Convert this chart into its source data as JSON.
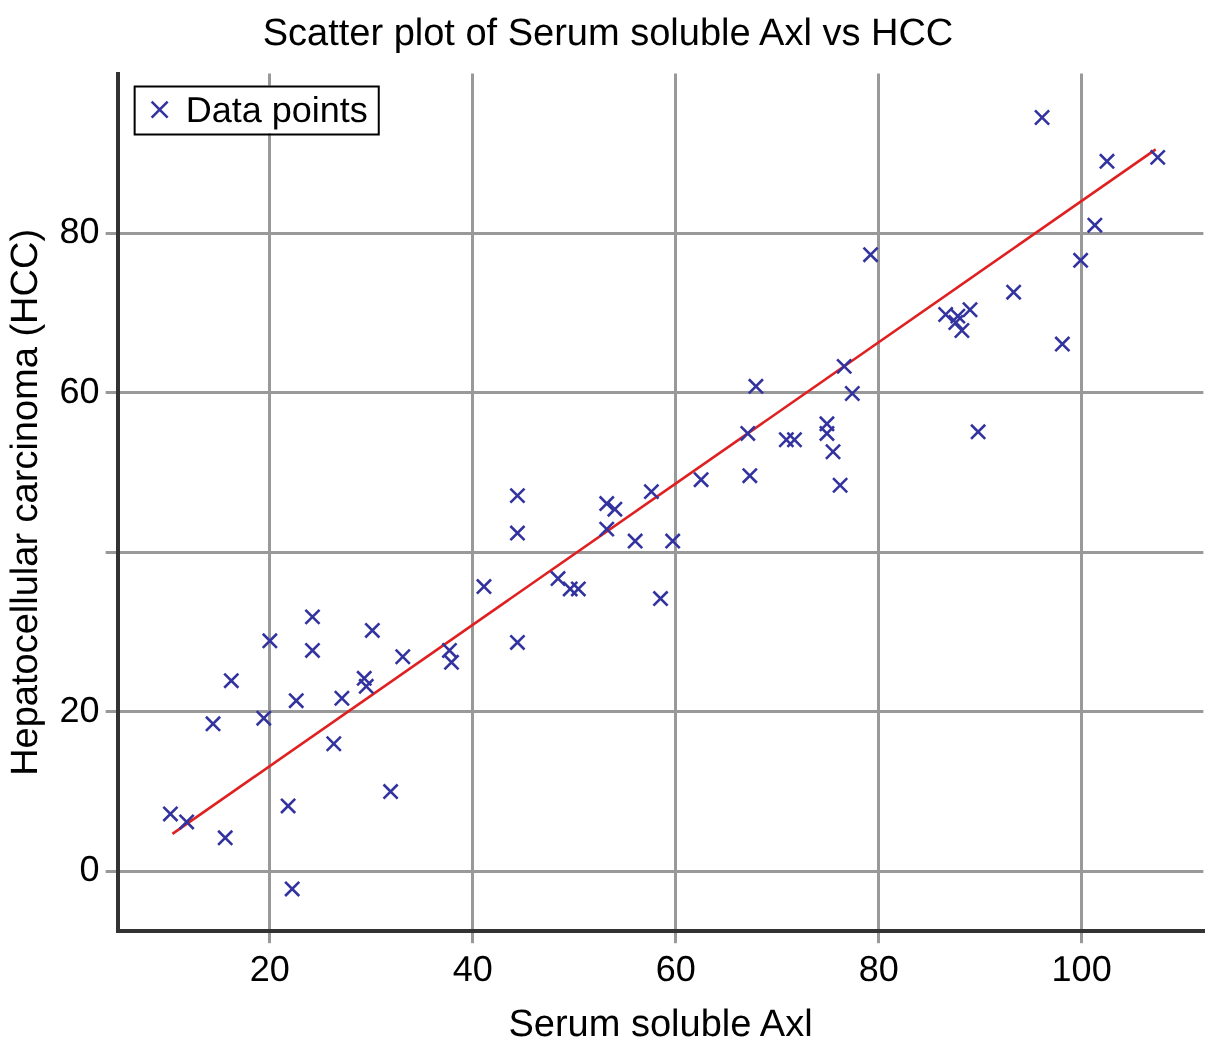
{
  "chart_data": {
    "type": "scatter",
    "title": "Scatter plot of Serum soluble Axl vs HCC",
    "xlabel": "Serum soluble Axl",
    "ylabel": "Hepatocellular carcinoma (HCC)",
    "xlim": [
      5,
      112
    ],
    "xticks": [
      20,
      40,
      60,
      80,
      100
    ],
    "ylim": [
      -7.5,
      100
    ],
    "yticks": [
      0,
      20,
      {
        "value": 40,
        "label": null
      },
      60,
      80
    ],
    "grid": true,
    "legend": "top left",
    "marker": "cross",
    "series": [
      {
        "name": "Data points",
        "color": "#3333a0",
        "x": [
          10.2,
          11.8,
          15.6,
          14.4,
          16.2,
          19.4,
          20.0,
          21.8,
          22.2,
          22.6,
          24.2,
          24.2,
          26.3,
          27.1,
          29.3,
          29.5,
          30.1,
          31.9,
          33.1,
          37.7,
          37.9,
          41.1,
          44.4,
          44.4,
          44.4,
          48.4,
          49.6,
          50.4,
          53.2,
          54.0,
          53.2,
          56.0,
          57.6,
          58.5,
          59.7,
          62.5,
          67.3,
          67.1,
          67.9,
          70.9,
          71.7,
          74.9,
          74.9,
          75.5,
          76.2,
          76.6,
          77.4,
          79.2,
          86.6,
          87.6,
          88.2,
          87.8,
          89.0,
          89.8,
          93.3,
          98.1,
          99.9,
          101.3,
          96.1,
          102.5,
          107.5
        ],
        "values": [
          7.2,
          6.2,
          4.2,
          18.5,
          23.9,
          19.2,
          28.9,
          8.2,
          -2.2,
          21.4,
          31.9,
          27.7,
          16.0,
          21.7,
          24.2,
          23.2,
          30.2,
          10.0,
          26.9,
          27.7,
          26.2,
          35.7,
          28.7,
          47.1,
          42.4,
          36.7,
          35.4,
          35.4,
          46.1,
          45.4,
          42.9,
          41.4,
          47.6,
          34.2,
          41.4,
          49.1,
          49.6,
          54.9,
          60.8,
          54.1,
          54.1,
          56.1,
          54.9,
          52.6,
          48.4,
          63.3,
          59.9,
          77.3,
          69.8,
          68.8,
          67.8,
          69.6,
          70.4,
          55.1,
          72.6,
          66.1,
          76.6,
          81.0,
          94.5,
          89.0,
          89.5
        ]
      },
      {
        "type": "line",
        "color": "#e02020",
        "x": [
          10.4,
          107.3
        ],
        "values": [
          4.7,
          90.5
        ],
        "marker": "none"
      }
    ]
  }
}
